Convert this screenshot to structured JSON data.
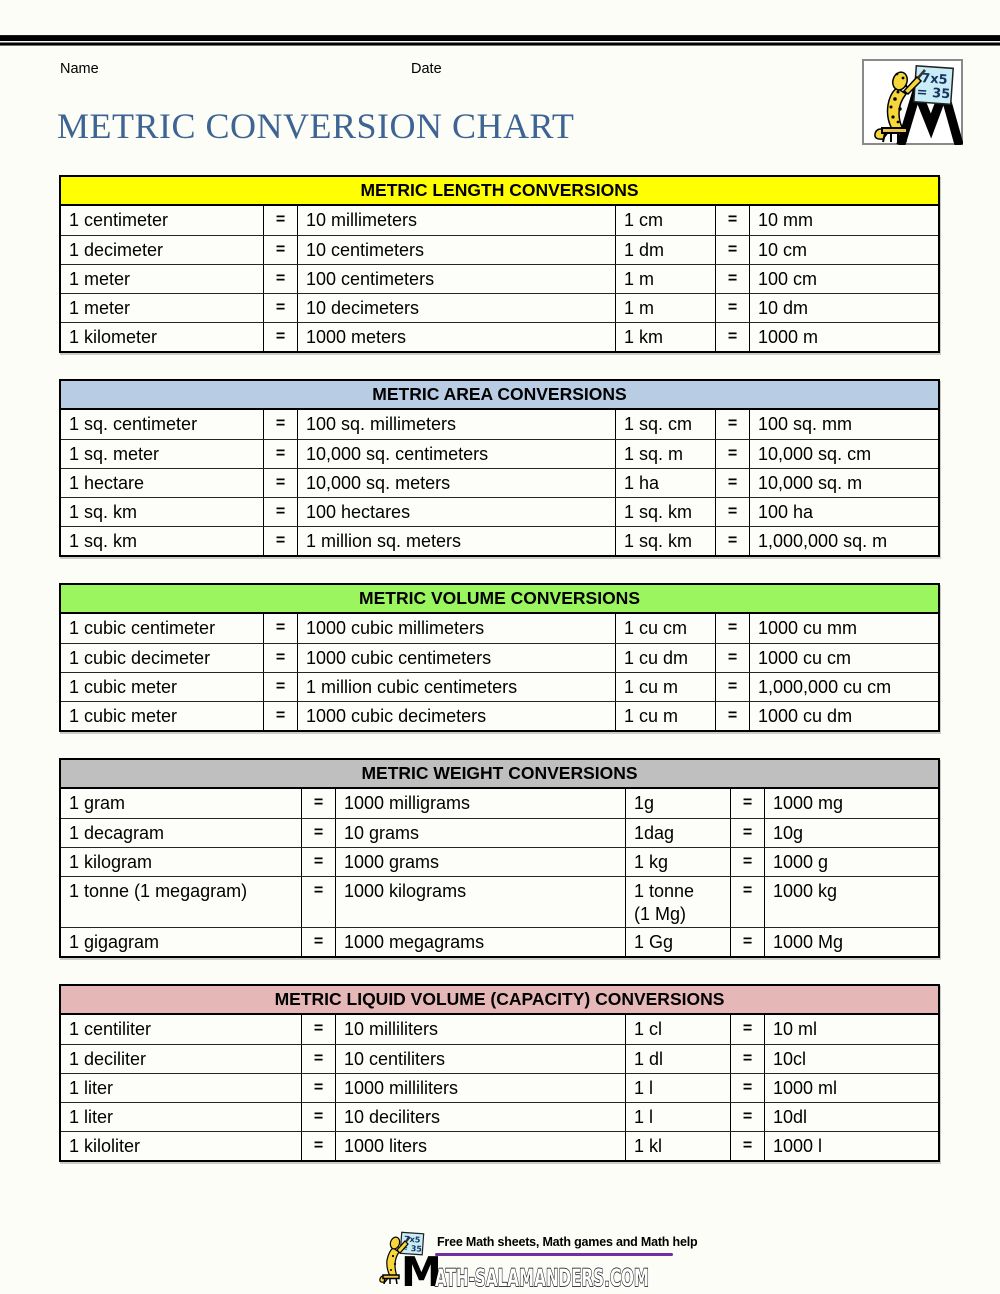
{
  "page": {
    "name_label": "Name",
    "date_label": "Date",
    "title": "METRIC CONVERSION CHART",
    "title_color": "#3D6493",
    "background": "#FCFDF7"
  },
  "logo": {
    "board_top": "7x5",
    "board_bottom": "= 35",
    "board_color": "#C9EDF6",
    "salamander_color": "#F5D73C"
  },
  "tables": [
    {
      "title": "METRIC LENGTH CONVERSIONS",
      "header_bg": "#FFFF00",
      "layout": "A",
      "rows": [
        [
          "1 centimeter",
          "=",
          "10 millimeters",
          "1 cm",
          "=",
          "10 mm"
        ],
        [
          "1 decimeter",
          "=",
          "10 centimeters",
          "1 dm",
          "=",
          "10 cm"
        ],
        [
          "1 meter",
          "=",
          "100 centimeters",
          "1 m",
          "=",
          "100 cm"
        ],
        [
          "1 meter",
          "=",
          "10 decimeters",
          "1 m",
          "=",
          "10 dm"
        ],
        [
          "1 kilometer",
          "=",
          "1000 meters",
          "1 km",
          "=",
          "1000 m"
        ]
      ]
    },
    {
      "title": "METRIC AREA CONVERSIONS",
      "header_bg": "#B8CCE4",
      "layout": "A",
      "rows": [
        [
          "1 sq. centimeter",
          "=",
          "100 sq. millimeters",
          "1 sq. cm",
          "=",
          "100 sq. mm"
        ],
        [
          "1 sq. meter",
          "=",
          "10,000 sq. centimeters",
          "1 sq. m",
          "=",
          "10,000 sq. cm"
        ],
        [
          "1 hectare",
          "=",
          "10,000 sq. meters",
          "1 ha",
          "=",
          "10,000 sq. m"
        ],
        [
          "1 sq. km",
          "=",
          "100 hectares",
          "1 sq. km",
          "=",
          "100 ha"
        ],
        [
          "1 sq. km",
          "=",
          "1 million sq. meters",
          "1 sq. km",
          "=",
          "1,000,000 sq. m"
        ]
      ]
    },
    {
      "title": "METRIC VOLUME CONVERSIONS",
      "header_bg": "#9AF55F",
      "layout": "A",
      "rows": [
        [
          "1 cubic centimeter",
          "=",
          "1000 cubic millimeters",
          "1 cu cm",
          "=",
          "1000 cu mm"
        ],
        [
          "1 cubic decimeter",
          "=",
          "1000 cubic centimeters",
          "1 cu dm",
          "=",
          "1000 cu cm"
        ],
        [
          "1 cubic meter",
          "=",
          "1 million cubic centimeters",
          "1 cu m",
          "=",
          "1,000,000 cu cm"
        ],
        [
          "1 cubic meter",
          "=",
          "1000 cubic decimeters",
          "1 cu m",
          "=",
          "1000 cu dm"
        ]
      ]
    },
    {
      "title": "METRIC WEIGHT CONVERSIONS",
      "header_bg": "#BFBFBF",
      "layout": "B",
      "rows": [
        [
          "1 gram",
          "=",
          "1000 milligrams",
          "1g",
          "=",
          "1000 mg"
        ],
        [
          "1 decagram",
          "=",
          "10 grams",
          "1dag",
          "=",
          "10g"
        ],
        [
          "1 kilogram",
          "=",
          "1000 grams",
          "1 kg",
          "=",
          "1000 g"
        ],
        [
          "1 tonne (1 megagram)",
          "=",
          "1000 kilograms",
          "1 tonne (1 Mg)",
          "=",
          "1000 kg"
        ],
        [
          "1 gigagram",
          "=",
          "1000 megagrams",
          "1 Gg",
          "=",
          "1000 Mg"
        ]
      ]
    },
    {
      "title": "METRIC LIQUID VOLUME (CAPACITY) CONVERSIONS",
      "header_bg": "#E5B8B7",
      "layout": "B",
      "rows": [
        [
          "1 centiliter",
          "=",
          "10 milliliters",
          "1 cl",
          "=",
          "10 ml"
        ],
        [
          "1 deciliter",
          "=",
          "10 centiliters",
          "1 dl",
          "=",
          "10cl"
        ],
        [
          "1 liter",
          "=",
          "1000 milliliters",
          "1 l",
          "=",
          "1000 ml"
        ],
        [
          "1 liter",
          "=",
          "10 deciliters",
          "1 l",
          "=",
          "10dl"
        ],
        [
          "1 kiloliter",
          "=",
          "1000 liters",
          "1 kl",
          "=",
          "1000 l"
        ]
      ]
    }
  ],
  "footer": {
    "tagline": "Free Math sheets, Math games and Math help",
    "site_initial": "M",
    "site_rest": "ATH-SALAMANDERS.COM",
    "accent_color": "#7030A0",
    "board_top": "7x5",
    "board_bottom": "= 35"
  }
}
